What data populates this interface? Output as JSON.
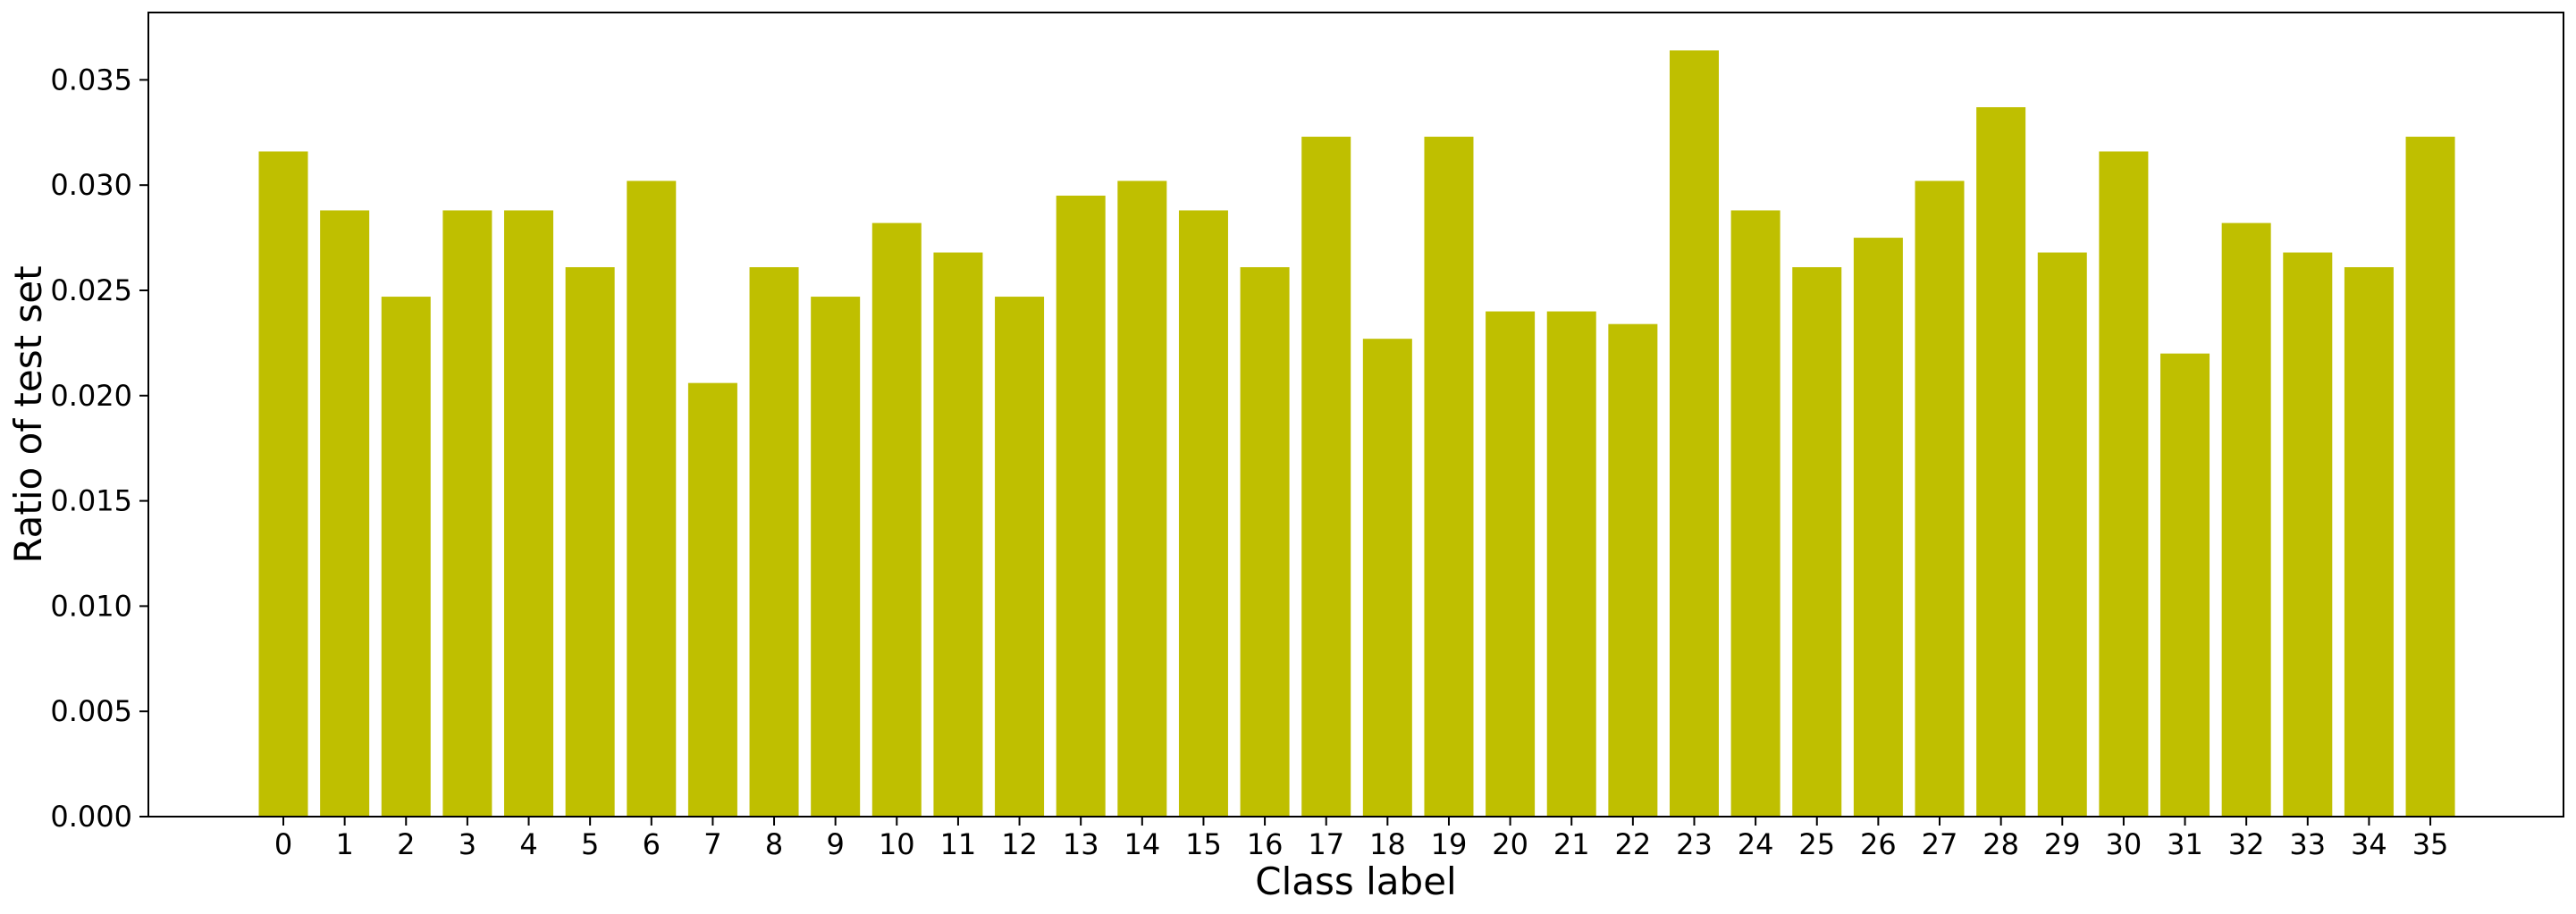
{
  "chart_data": {
    "type": "bar",
    "xlabel": "Class label",
    "ylabel": "Ratio of test set",
    "categories": [
      "0",
      "1",
      "2",
      "3",
      "4",
      "5",
      "6",
      "7",
      "8",
      "9",
      "10",
      "11",
      "12",
      "13",
      "14",
      "15",
      "16",
      "17",
      "18",
      "19",
      "20",
      "21",
      "22",
      "23",
      "24",
      "25",
      "26",
      "27",
      "28",
      "29",
      "30",
      "31",
      "32",
      "33",
      "34",
      "35"
    ],
    "values": [
      0.0316,
      0.0288,
      0.0247,
      0.0288,
      0.0288,
      0.0261,
      0.0302,
      0.0206,
      0.0261,
      0.0247,
      0.0282,
      0.0268,
      0.0247,
      0.0295,
      0.0302,
      0.0288,
      0.0261,
      0.0323,
      0.0227,
      0.0323,
      0.024,
      0.024,
      0.0234,
      0.0364,
      0.0288,
      0.0261,
      0.0275,
      0.0302,
      0.0337,
      0.0268,
      0.0316,
      0.022,
      0.0282,
      0.0268,
      0.0261,
      0.0323
    ],
    "yticks": [
      "0.000",
      "0.005",
      "0.010",
      "0.015",
      "0.020",
      "0.025",
      "0.030",
      "0.035"
    ],
    "ylim": [
      0,
      0.0382
    ],
    "grid": false,
    "bar_color": "#bfbf00"
  }
}
